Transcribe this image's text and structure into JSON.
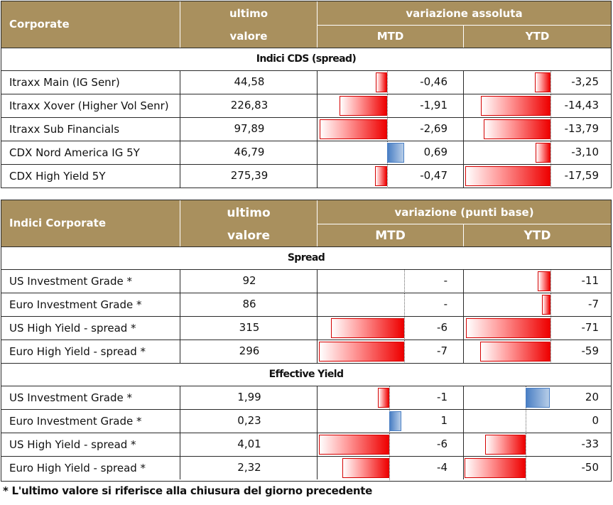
{
  "table1": {
    "header": {
      "corner": "Corporate",
      "last_value_line1": "ultimo",
      "last_value_line2": "valore",
      "change_group": "variazione assoluta",
      "mtd": "MTD",
      "ytd": "YTD"
    },
    "section": "Indici CDS (spread)",
    "rows": [
      {
        "name": "Itraxx Main (IG Senr)",
        "value": "44,58",
        "mtd": "-0,46",
        "ytd": "-3,25",
        "mtd_num": -0.46,
        "ytd_num": -3.25
      },
      {
        "name": "Itraxx Xover (Higher Vol Senr)",
        "value": "226,83",
        "mtd": "-1,91",
        "ytd": "-14,43",
        "mtd_num": -1.91,
        "ytd_num": -14.43
      },
      {
        "name": "Itraxx Sub Financials",
        "value": "97,89",
        "mtd": "-2,69",
        "ytd": "-13,79",
        "mtd_num": -2.69,
        "ytd_num": -13.79
      },
      {
        "name": "CDX Nord America IG 5Y",
        "value": "46,79",
        "mtd": "0,69",
        "ytd": "-3,10",
        "mtd_num": 0.69,
        "ytd_num": -3.1
      },
      {
        "name": "CDX High Yield 5Y",
        "value": "275,39",
        "mtd": "-0,47",
        "ytd": "-17,59",
        "mtd_num": -0.47,
        "ytd_num": -17.59
      }
    ]
  },
  "table2": {
    "header": {
      "corner": "Indici Corporate",
      "last_value_line1": "ultimo",
      "last_value_line2": "valore",
      "change_group": "variazione (punti base)",
      "mtd": "MTD",
      "ytd": "YTD"
    },
    "sections": [
      {
        "title": "Spread",
        "rows": [
          {
            "name": "US Investment Grade *",
            "value": "92",
            "mtd": "-",
            "ytd": "-11",
            "mtd_num": 0,
            "ytd_num": -11
          },
          {
            "name": "Euro Investment Grade *",
            "value": "86",
            "mtd": "-",
            "ytd": "-7",
            "mtd_num": 0,
            "ytd_num": -7
          },
          {
            "name": "US High Yield  - spread *",
            "value": "315",
            "mtd": "-6",
            "ytd": "-71",
            "mtd_num": -6,
            "ytd_num": -71
          },
          {
            "name": "Euro High Yield  - spread *",
            "value": "296",
            "mtd": "-7",
            "ytd": "-59",
            "mtd_num": -7,
            "ytd_num": -59
          }
        ]
      },
      {
        "title": "Effective Yield",
        "rows": [
          {
            "name": "US Investment Grade *",
            "value": "1,99",
            "mtd": "-1",
            "ytd": "20",
            "mtd_num": -1,
            "ytd_num": 20
          },
          {
            "name": "Euro Investment Grade *",
            "value": "0,23",
            "mtd": "1",
            "ytd": "0",
            "mtd_num": 1,
            "ytd_num": 0
          },
          {
            "name": "US High Yield  - spread *",
            "value": "4,01",
            "mtd": "-6",
            "ytd": "-33",
            "mtd_num": -6,
            "ytd_num": -33
          },
          {
            "name": "Euro High Yield  - spread *",
            "value": "2,32",
            "mtd": "-4",
            "ytd": "-50",
            "mtd_num": -4,
            "ytd_num": -50
          }
        ]
      }
    ]
  },
  "footnote": "* L'ultimo valore si riferisce alla chiusura del giorno precedente",
  "colors": {
    "header_bg": "#A9905E",
    "negative_bar": "#EE0000",
    "positive_bar": "#4A7FC4"
  }
}
